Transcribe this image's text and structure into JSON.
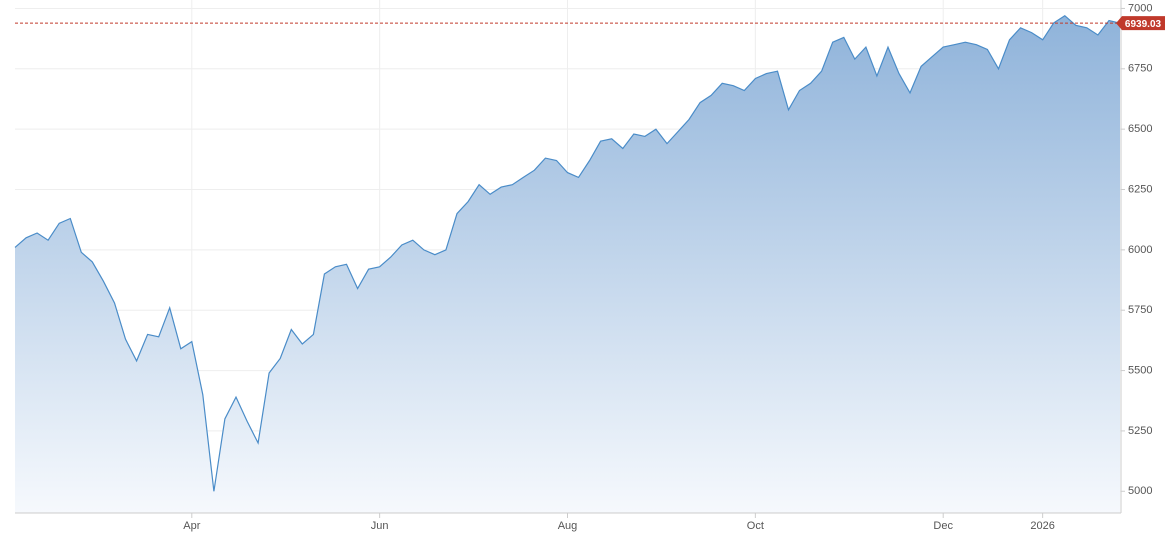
{
  "chart_data": {
    "type": "area",
    "categories": [
      null,
      null,
      null,
      null,
      null,
      null,
      null,
      null,
      null,
      null,
      null,
      null,
      null,
      null,
      null,
      null,
      "Apr",
      null,
      null,
      null,
      null,
      null,
      null,
      null,
      null,
      null,
      null,
      null,
      null,
      null,
      null,
      null,
      null,
      "Jun",
      null,
      null,
      null,
      null,
      null,
      null,
      null,
      null,
      null,
      null,
      null,
      null,
      null,
      null,
      null,
      null,
      "Aug",
      null,
      null,
      null,
      null,
      null,
      null,
      null,
      null,
      null,
      null,
      null,
      null,
      null,
      null,
      null,
      null,
      "Oct",
      null,
      null,
      null,
      null,
      null,
      null,
      null,
      null,
      null,
      null,
      null,
      null,
      null,
      null,
      null,
      null,
      "Dec",
      null,
      null,
      null,
      null,
      null,
      null,
      null,
      null,
      "2026",
      null,
      null,
      null,
      null,
      null,
      null,
      null
    ],
    "series": [
      {
        "color": "#4a8cc8",
        "values": [
          6010,
          6050,
          6070,
          6040,
          6110,
          6130,
          5990,
          5950,
          5870,
          5780,
          5630,
          5540,
          5650,
          5640,
          5760,
          5590,
          5620,
          5400,
          5000,
          5300,
          5390,
          5290,
          5200,
          5490,
          5550,
          5670,
          5610,
          5650,
          5900,
          5930,
          5940,
          5840,
          5920,
          5930,
          5970,
          6020,
          6040,
          6000,
          5980,
          6000,
          6150,
          6200,
          6270,
          6230,
          6260,
          6270,
          6300,
          6330,
          6380,
          6370,
          6320,
          6300,
          6370,
          6450,
          6460,
          6420,
          6480,
          6470,
          6500,
          6440,
          6490,
          6540,
          6610,
          6640,
          6690,
          6680,
          6660,
          6710,
          6730,
          6740,
          6580,
          6660,
          6690,
          6740,
          6860,
          6880,
          6790,
          6840,
          6720,
          6840,
          6730,
          6650,
          6760,
          6800,
          6840,
          6850,
          6860,
          6850,
          6830,
          6750,
          6870,
          6920,
          6900,
          6870,
          6940,
          6970,
          6930,
          6920,
          6890,
          6950,
          6939.03
        ]
      }
    ],
    "ylim": [
      4910,
      7035
    ],
    "yticks": [
      5000,
      5250,
      5500,
      5750,
      6000,
      6250,
      6500,
      6750,
      7000
    ],
    "grid": true,
    "last_value_color": "#c0392b"
  }
}
